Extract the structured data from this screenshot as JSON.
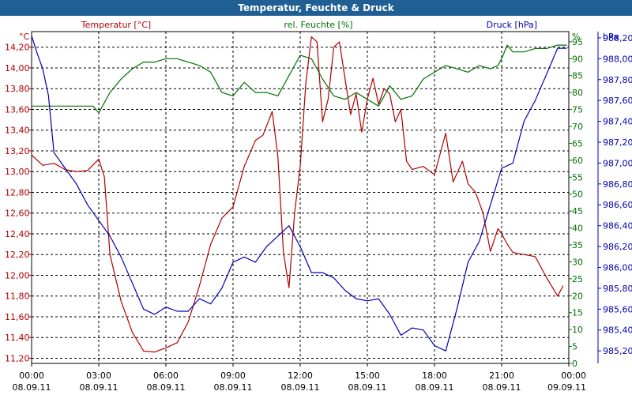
{
  "title": "Temperatur, Feuchte & Druck",
  "colors": {
    "temperature": "#b00000",
    "humidity": "#007000",
    "pressure": "#0000b0",
    "title_bar": "#1f5f94"
  },
  "chart_data": {
    "type": "line",
    "title": "Temperatur, Feuchte & Druck",
    "grid": true,
    "x_ticks": [
      {
        "time": "00:00",
        "date": "08.09.11"
      },
      {
        "time": "03:00",
        "date": "08.09.11"
      },
      {
        "time": "06:00",
        "date": "08.09.11"
      },
      {
        "time": "09:00",
        "date": "08.09.11"
      },
      {
        "time": "12:00",
        "date": "08.09.11"
      },
      {
        "time": "15:00",
        "date": "08.09.11"
      },
      {
        "time": "18:00",
        "date": "08.09.11"
      },
      {
        "time": "21:00",
        "date": "08.09.11"
      },
      {
        "time": "00:00",
        "date": "09.09.11"
      }
    ],
    "xlim": [
      "08.09.11 00:00",
      "09.09.11 00:00"
    ],
    "axes": {
      "temperature": {
        "label": "Temperatur [°C]",
        "unit": "°C",
        "ylim": [
          11.15,
          14.35
        ],
        "ticks": [
          "14,20",
          "14,00",
          "13,80",
          "13,60",
          "13,40",
          "13,20",
          "13,00",
          "12,80",
          "12,60",
          "12,40",
          "12,20",
          "12,00",
          "11,80",
          "11,60",
          "11,40",
          "11,20"
        ]
      },
      "humidity": {
        "label": "rel. Feuchte [%]",
        "unit": "%",
        "ylim": [
          0,
          98
        ],
        "ticks": [
          "95",
          "90",
          "85",
          "80",
          "75",
          "70",
          "65",
          "60",
          "55",
          "50",
          "45",
          "40",
          "35",
          "30",
          "25",
          "20",
          "15",
          "10",
          "5",
          "0"
        ]
      },
      "pressure": {
        "label": "Druck [hPa]",
        "unit": "hPa",
        "ylim": [
          985.08,
          988.26
        ],
        "ticks": [
          "988,20",
          "988,00",
          "987,80",
          "987,60",
          "987,40",
          "987,20",
          "987,00",
          "986,80",
          "986,60",
          "986,40",
          "986,20",
          "986,00",
          "985,80",
          "985,60",
          "985,40",
          "985,20"
        ]
      }
    },
    "series": [
      {
        "name": "Temperatur [°C]",
        "axis": "temperature",
        "color": "#b00000",
        "x": [
          "08.09.11 00:00",
          "08.09.11 00:30",
          "08.09.11 01:00",
          "08.09.11 01:30",
          "08.09.11 02:00",
          "08.09.11 02:30",
          "08.09.11 03:00",
          "08.09.11 03:15",
          "08.09.11 03:30",
          "08.09.11 04:00",
          "08.09.11 04:30",
          "08.09.11 05:00",
          "08.09.11 05:30",
          "08.09.11 06:00",
          "08.09.11 06:30",
          "08.09.11 07:00",
          "08.09.11 07:30",
          "08.09.11 08:00",
          "08.09.11 08:30",
          "08.09.11 09:00",
          "08.09.11 09:30",
          "08.09.11 10:00",
          "08.09.11 10:20",
          "08.09.11 10:45",
          "08.09.11 11:00",
          "08.09.11 11:15",
          "08.09.11 11:30",
          "08.09.11 11:45",
          "08.09.11 12:00",
          "08.09.11 12:15",
          "08.09.11 12:30",
          "08.09.11 12:45",
          "08.09.11 13:00",
          "08.09.11 13:15",
          "08.09.11 13:30",
          "08.09.11 13:45",
          "08.09.11 14:00",
          "08.09.11 14:15",
          "08.09.11 14:30",
          "08.09.11 14:45",
          "08.09.11 15:00",
          "08.09.11 15:15",
          "08.09.11 15:30",
          "08.09.11 15:45",
          "08.09.11 16:00",
          "08.09.11 16:15",
          "08.09.11 16:30",
          "08.09.11 16:45",
          "08.09.11 17:00",
          "08.09.11 17:30",
          "08.09.11 18:00",
          "08.09.11 18:30",
          "08.09.11 18:50",
          "08.09.11 19:15",
          "08.09.11 19:30",
          "08.09.11 19:50",
          "08.09.11 20:10",
          "08.09.11 20:30",
          "08.09.11 20:50",
          "08.09.11 21:00",
          "08.09.11 21:15",
          "08.09.11 21:30",
          "08.09.11 22:00",
          "08.09.11 22:30",
          "08.09.11 23:00",
          "08.09.11 23:30",
          "08.09.11 23:45"
        ],
        "y": [
          13.16,
          13.06,
          13.08,
          13.02,
          13.0,
          13.01,
          13.12,
          12.95,
          12.2,
          11.75,
          11.45,
          11.27,
          11.26,
          11.3,
          11.35,
          11.55,
          11.9,
          12.3,
          12.55,
          12.66,
          13.05,
          13.3,
          13.35,
          13.58,
          13.15,
          12.22,
          11.88,
          12.6,
          13.05,
          13.85,
          14.3,
          14.25,
          13.48,
          13.7,
          14.2,
          14.25,
          13.9,
          13.55,
          13.75,
          13.38,
          13.7,
          13.9,
          13.65,
          13.8,
          13.75,
          13.48,
          13.6,
          13.1,
          13.02,
          13.05,
          12.97,
          13.37,
          12.9,
          13.1,
          12.88,
          12.8,
          12.6,
          12.23,
          12.45,
          12.4,
          12.3,
          12.22,
          12.2,
          12.18,
          11.98,
          11.8,
          11.9
        ]
      },
      {
        "name": "rel. Feuchte [%]",
        "axis": "humidity",
        "color": "#007000",
        "x": [
          "08.09.11 00:00",
          "08.09.11 01:00",
          "08.09.11 02:00",
          "08.09.11 02:45",
          "08.09.11 03:00",
          "08.09.11 03:30",
          "08.09.11 04:00",
          "08.09.11 04:30",
          "08.09.11 05:00",
          "08.09.11 05:30",
          "08.09.11 06:00",
          "08.09.11 06:30",
          "08.09.11 07:00",
          "08.09.11 07:30",
          "08.09.11 08:00",
          "08.09.11 08:30",
          "08.09.11 09:00",
          "08.09.11 09:30",
          "08.09.11 10:00",
          "08.09.11 10:30",
          "08.09.11 11:00",
          "08.09.11 11:30",
          "08.09.11 12:00",
          "08.09.11 12:30",
          "08.09.11 13:00",
          "08.09.11 13:30",
          "08.09.11 14:00",
          "08.09.11 14:30",
          "08.09.11 15:00",
          "08.09.11 15:30",
          "08.09.11 16:00",
          "08.09.11 16:30",
          "08.09.11 17:00",
          "08.09.11 17:30",
          "08.09.11 18:00",
          "08.09.11 18:30",
          "08.09.11 19:00",
          "08.09.11 19:30",
          "08.09.11 20:00",
          "08.09.11 20:30",
          "08.09.11 20:50",
          "08.09.11 21:00",
          "08.09.11 21:15",
          "08.09.11 21:30",
          "08.09.11 22:00",
          "08.09.11 22:30",
          "08.09.11 23:00",
          "08.09.11 23:30",
          "08.09.11 23:55"
        ],
        "y": [
          76,
          76,
          76,
          76,
          74,
          80,
          84,
          87,
          89,
          89,
          90,
          90,
          89,
          88,
          86,
          80,
          79,
          83,
          80,
          80,
          79,
          85,
          91,
          90,
          84,
          79,
          78,
          80,
          78,
          76,
          82,
          78,
          79,
          84,
          86,
          88,
          87,
          86,
          88,
          87,
          88,
          90,
          94,
          92,
          92,
          93,
          93,
          94,
          94
        ]
      },
      {
        "name": "Druck [hPa]",
        "axis": "pressure",
        "color": "#0000b0",
        "x": [
          "08.09.11 00:00",
          "08.09.11 00:15",
          "08.09.11 00:30",
          "08.09.11 00:45",
          "08.09.11 01:00",
          "08.09.11 01:30",
          "08.09.11 02:00",
          "08.09.11 02:30",
          "08.09.11 03:00",
          "08.09.11 03:30",
          "08.09.11 04:00",
          "08.09.11 04:30",
          "08.09.11 05:00",
          "08.09.11 05:30",
          "08.09.11 06:00",
          "08.09.11 06:30",
          "08.09.11 07:00",
          "08.09.11 07:30",
          "08.09.11 08:00",
          "08.09.11 08:30",
          "08.09.11 09:00",
          "08.09.11 09:30",
          "08.09.11 10:00",
          "08.09.11 10:30",
          "08.09.11 11:00",
          "08.09.11 11:30",
          "08.09.11 12:00",
          "08.09.11 12:30",
          "08.09.11 13:00",
          "08.09.11 13:30",
          "08.09.11 14:00",
          "08.09.11 14:30",
          "08.09.11 15:00",
          "08.09.11 15:30",
          "08.09.11 16:00",
          "08.09.11 16:30",
          "08.09.11 17:00",
          "08.09.11 17:30",
          "08.09.11 18:00",
          "08.09.11 18:30",
          "08.09.11 19:00",
          "08.09.11 19:30",
          "08.09.11 20:00",
          "08.09.11 20:30",
          "08.09.11 21:00",
          "08.09.11 21:30",
          "08.09.11 22:00",
          "08.09.11 22:30",
          "08.09.11 23:00",
          "08.09.11 23:30",
          "08.09.11 23:55"
        ],
        "y": [
          988.22,
          988.05,
          987.9,
          987.65,
          987.1,
          986.95,
          986.8,
          986.6,
          986.45,
          986.3,
          986.1,
          985.85,
          985.6,
          985.55,
          985.62,
          985.58,
          985.58,
          985.7,
          985.65,
          985.8,
          986.05,
          986.1,
          986.05,
          986.2,
          986.3,
          986.4,
          986.2,
          985.95,
          985.95,
          985.9,
          985.78,
          985.7,
          985.68,
          985.7,
          985.55,
          985.35,
          985.42,
          985.4,
          985.25,
          985.2,
          985.6,
          986.05,
          986.25,
          986.6,
          986.95,
          987.0,
          987.4,
          987.6,
          987.85,
          988.1,
          988.1
        ]
      }
    ]
  }
}
